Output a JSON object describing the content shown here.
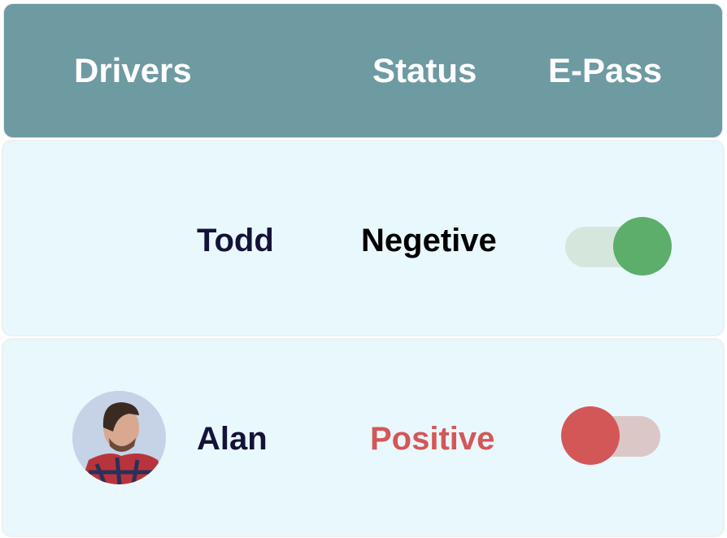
{
  "header": {
    "drivers": "Drivers",
    "status": "Status",
    "epass": "E-Pass"
  },
  "rows": [
    {
      "name": "Todd",
      "status": "Negetive",
      "status_color": "#000000",
      "epass_on": true,
      "toggle_color": "#5cae6a"
    },
    {
      "name": "Alan",
      "status": "Positive",
      "status_color": "#d45757",
      "epass_on": false,
      "toggle_color": "#d45757",
      "avatar": "driver-photo"
    }
  ]
}
